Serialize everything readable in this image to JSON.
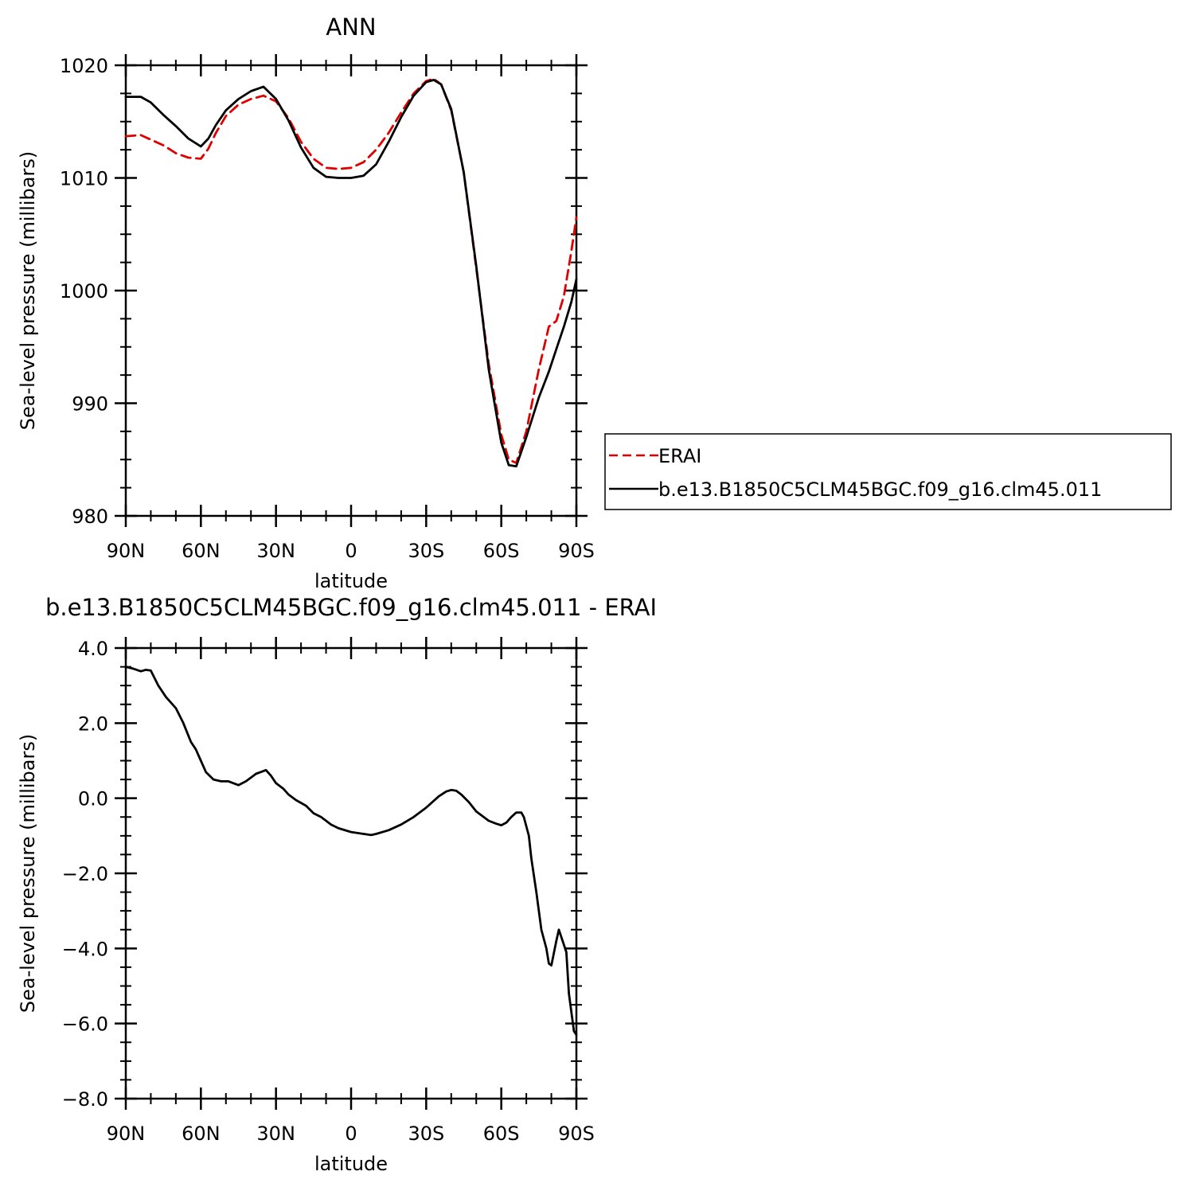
{
  "chart_data": [
    {
      "type": "line",
      "title": "ANN",
      "xlabel": "latitude",
      "ylabel": "Sea-level pressure (millibars)",
      "xlim": [
        90,
        -90
      ],
      "ylim": [
        980,
        1020
      ],
      "x_ticks": [
        {
          "value": 90,
          "label": "90N"
        },
        {
          "value": 60,
          "label": "60N"
        },
        {
          "value": 30,
          "label": "30N"
        },
        {
          "value": 0,
          "label": "0"
        },
        {
          "value": -30,
          "label": "30S"
        },
        {
          "value": -60,
          "label": "60S"
        },
        {
          "value": -90,
          "label": "90S"
        }
      ],
      "y_ticks": [
        {
          "value": 980,
          "label": "980"
        },
        {
          "value": 990,
          "label": "990"
        },
        {
          "value": 1000,
          "label": "1000"
        },
        {
          "value": 1010,
          "label": "1010"
        },
        {
          "value": 1020,
          "label": "1020"
        }
      ],
      "legend": "right",
      "series": [
        {
          "name": "ERAI",
          "color": "#e00000",
          "dash": true,
          "x": [
            90,
            84,
            80,
            75,
            70,
            65,
            60,
            57,
            54,
            50,
            45,
            40,
            35,
            30,
            25,
            20,
            15,
            10,
            5,
            0,
            -5,
            -10,
            -15,
            -20,
            -25,
            -30,
            -33,
            -36,
            -40,
            -45,
            -50,
            -55,
            -60,
            -63,
            -66,
            -70,
            -75,
            -79,
            -82,
            -85,
            -88,
            -90
          ],
          "y": [
            1013.7,
            1013.8,
            1013.4,
            1012.9,
            1012.2,
            1011.8,
            1011.7,
            1012.6,
            1014.0,
            1015.5,
            1016.5,
            1017.0,
            1017.3,
            1016.8,
            1015.3,
            1013.2,
            1011.7,
            1010.9,
            1010.8,
            1010.9,
            1011.4,
            1012.5,
            1014.0,
            1015.8,
            1017.5,
            1018.6,
            1018.8,
            1018.3,
            1016.0,
            1010.5,
            1002.0,
            993.5,
            987.2,
            985.0,
            984.7,
            987.5,
            993.0,
            996.8,
            997.3,
            999.5,
            1003.5,
            1006.5
          ]
        },
        {
          "name": "b.e13.B1850C5CLM45BGC.f09_g16.clm45.011",
          "color": "#000000",
          "dash": false,
          "x": [
            90,
            84,
            80,
            75,
            70,
            65,
            60,
            57,
            54,
            50,
            45,
            40,
            35,
            30,
            25,
            20,
            15,
            10,
            5,
            0,
            -5,
            -10,
            -15,
            -20,
            -25,
            -30,
            -33,
            -36,
            -40,
            -45,
            -50,
            -55,
            -60,
            -63,
            -66,
            -70,
            -75,
            -79,
            -82,
            -85,
            -88,
            -90
          ],
          "y": [
            1017.2,
            1017.2,
            1016.7,
            1015.6,
            1014.6,
            1013.5,
            1012.8,
            1013.5,
            1014.7,
            1016.0,
            1017.0,
            1017.7,
            1018.1,
            1017.0,
            1015.1,
            1012.7,
            1010.9,
            1010.1,
            1010.0,
            1010.0,
            1010.2,
            1011.2,
            1013.2,
            1015.4,
            1017.3,
            1018.5,
            1018.7,
            1018.3,
            1016.1,
            1010.5,
            1002.2,
            993.0,
            986.5,
            984.5,
            984.4,
            987.0,
            990.5,
            992.8,
            994.8,
            996.8,
            999.0,
            1001.0
          ]
        }
      ]
    },
    {
      "type": "line",
      "title": "b.e13.B1850C5CLM45BGC.f09_g16.clm45.011 - ERAI",
      "xlabel": "latitude",
      "ylabel": "Sea-level pressure (millibars)",
      "xlim": [
        90,
        -90
      ],
      "ylim": [
        -8.0,
        4.0
      ],
      "x_ticks": [
        {
          "value": 90,
          "label": "90N"
        },
        {
          "value": 60,
          "label": "60N"
        },
        {
          "value": 30,
          "label": "30N"
        },
        {
          "value": 0,
          "label": "0"
        },
        {
          "value": -30,
          "label": "30S"
        },
        {
          "value": -60,
          "label": "60S"
        },
        {
          "value": -90,
          "label": "90S"
        }
      ],
      "y_ticks": [
        {
          "value": -8.0,
          "label": "−8.0"
        },
        {
          "value": -6.0,
          "label": "−6.0"
        },
        {
          "value": -4.0,
          "label": "−4.0"
        },
        {
          "value": -2.0,
          "label": "−2.0"
        },
        {
          "value": 0.0,
          "label": "0.0"
        },
        {
          "value": 2.0,
          "label": "2.0"
        },
        {
          "value": 4.0,
          "label": "4.0"
        }
      ],
      "series": [
        {
          "color": "#000000",
          "dash": false,
          "x": [
            90,
            87,
            84,
            82,
            80,
            77,
            74,
            70,
            67,
            64,
            62,
            60,
            58,
            55,
            52,
            49,
            45,
            42,
            40,
            38,
            36,
            34,
            32,
            30,
            27,
            25,
            22,
            18,
            15,
            12,
            10,
            8,
            5,
            0,
            -5,
            -8,
            -10,
            -15,
            -20,
            -25,
            -30,
            -35,
            -38,
            -40,
            -42,
            -44,
            -47,
            -50,
            -55,
            -58,
            -60,
            -62,
            -64,
            -66,
            -68,
            -69,
            -71,
            -72,
            -74,
            -76,
            -78,
            -79,
            -80,
            -82,
            -83,
            -86,
            -87,
            -89,
            -90
          ],
          "y": [
            3.5,
            3.45,
            3.38,
            3.42,
            3.4,
            3.0,
            2.7,
            2.4,
            2.0,
            1.5,
            1.3,
            1.0,
            0.7,
            0.5,
            0.45,
            0.45,
            0.35,
            0.45,
            0.55,
            0.65,
            0.7,
            0.75,
            0.6,
            0.4,
            0.25,
            0.1,
            -0.05,
            -0.2,
            -0.4,
            -0.5,
            -0.6,
            -0.7,
            -0.8,
            -0.9,
            -0.95,
            -0.98,
            -0.95,
            -0.85,
            -0.7,
            -0.5,
            -0.25,
            0.05,
            0.18,
            0.22,
            0.2,
            0.1,
            -0.1,
            -0.35,
            -0.6,
            -0.68,
            -0.72,
            -0.65,
            -0.5,
            -0.38,
            -0.38,
            -0.5,
            -1.0,
            -1.6,
            -2.5,
            -3.5,
            -4.0,
            -4.4,
            -4.45,
            -3.8,
            -3.5,
            -4.1,
            -5.2,
            -6.2,
            -6.3
          ]
        }
      ]
    }
  ]
}
